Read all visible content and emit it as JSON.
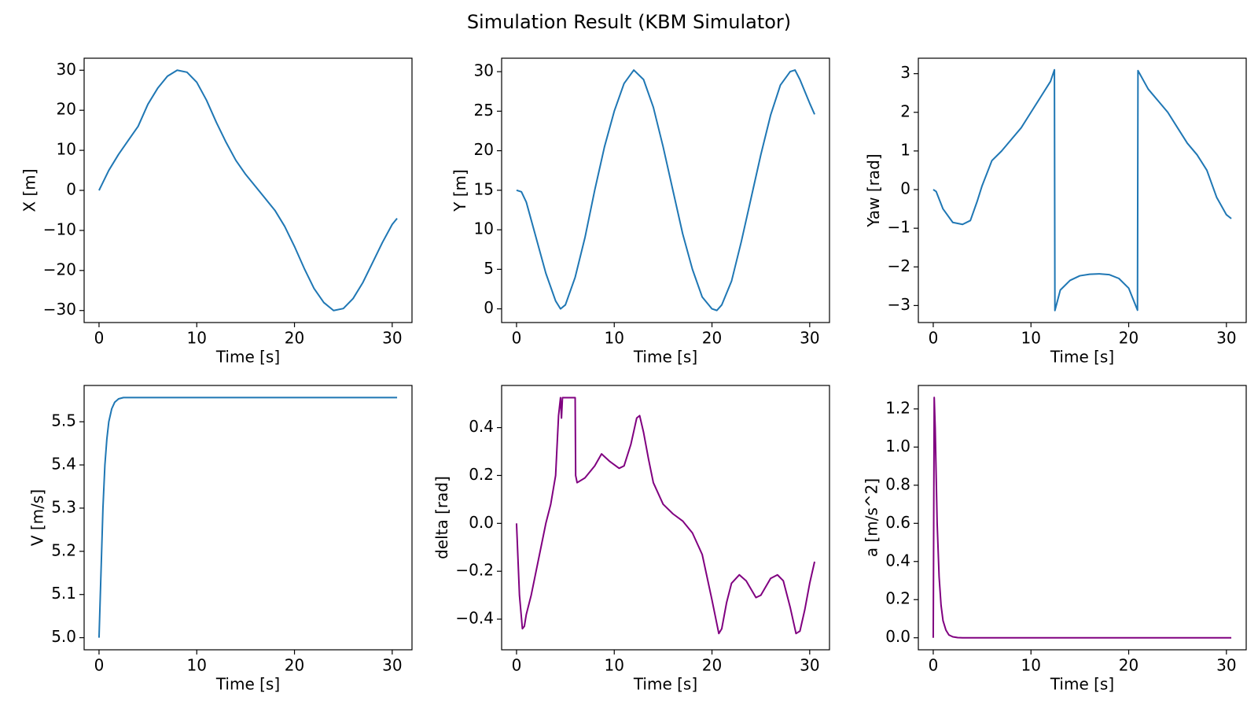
{
  "title": "Simulation Result (KBM Simulator)",
  "chart_data": [
    {
      "type": "line",
      "xlabel": "Time [s]",
      "ylabel": "X [m]",
      "color": "#1f77b4",
      "x": [
        0,
        1,
        2,
        3,
        4,
        5,
        6,
        7,
        8,
        9,
        10,
        11,
        12,
        13,
        14,
        15,
        16,
        17,
        18,
        19,
        20,
        21,
        22,
        23,
        24,
        25,
        26,
        27,
        28,
        29,
        30,
        30.5
      ],
      "values": [
        0,
        5,
        9,
        12.5,
        16,
        21.5,
        25.5,
        28.5,
        30,
        29.5,
        27,
        22.5,
        17,
        12,
        7.5,
        4,
        1,
        -2,
        -5,
        -9,
        -14,
        -19.5,
        -24.5,
        -28,
        -30,
        -29.5,
        -27,
        -23,
        -18,
        -13,
        -8.5,
        -7
      ],
      "xlim": [
        -1.525,
        32.025
      ],
      "ylim": [
        -33,
        33
      ],
      "xticks": [
        0,
        10,
        20,
        30
      ],
      "yticks": [
        {
          "value": -30,
          "label": "−30"
        },
        {
          "value": -20,
          "label": "−20"
        },
        {
          "value": -10,
          "label": "−10"
        },
        0,
        10,
        20,
        30
      ]
    },
    {
      "type": "line",
      "xlabel": "Time [s]",
      "ylabel": "Y [m]",
      "color": "#1f77b4",
      "x": [
        0,
        0.5,
        1,
        2,
        3,
        4,
        4.5,
        5,
        6,
        7,
        8,
        9,
        10,
        11,
        12,
        13,
        14,
        15,
        16,
        17,
        18,
        19,
        20,
        20.5,
        21,
        22,
        23,
        24,
        25,
        26,
        27,
        28,
        28.5,
        29,
        30,
        30.5
      ],
      "values": [
        15,
        14.8,
        13.5,
        9,
        4.5,
        1,
        0,
        0.5,
        4,
        9,
        15,
        20.5,
        25,
        28.5,
        30.2,
        29,
        25.5,
        20.5,
        15,
        9.5,
        5,
        1.5,
        0,
        -0.2,
        0.5,
        3.5,
        8.5,
        14,
        19.5,
        24.5,
        28.3,
        30,
        30.2,
        29,
        26,
        24.6
      ],
      "xlim": [
        -1.525,
        32.025
      ],
      "ylim": [
        -1.73,
        31.7
      ],
      "xticks": [
        0,
        10,
        20,
        30
      ],
      "yticks": [
        0,
        5,
        10,
        15,
        20,
        25,
        30
      ]
    },
    {
      "type": "line",
      "xlabel": "Time [s]",
      "ylabel": "Yaw [rad]",
      "color": "#1f77b4",
      "x": [
        0,
        0.3,
        1,
        2,
        3,
        3.8,
        4.5,
        5,
        6,
        7,
        8,
        9,
        10,
        11,
        12,
        12.4,
        12.45,
        13,
        14,
        15,
        16,
        17,
        18,
        19,
        20,
        20.9,
        20.95,
        22,
        23,
        24,
        25,
        26,
        27,
        28,
        29,
        30,
        30.5
      ],
      "values": [
        0,
        -0.05,
        -0.5,
        -0.85,
        -0.9,
        -0.8,
        -0.3,
        0.1,
        0.75,
        1.0,
        1.3,
        1.6,
        2.0,
        2.4,
        2.8,
        3.1,
        -3.13,
        -2.6,
        -2.35,
        -2.23,
        -2.19,
        -2.18,
        -2.2,
        -2.3,
        -2.55,
        -3.12,
        3.08,
        2.6,
        2.3,
        2.0,
        1.6,
        1.2,
        0.9,
        0.5,
        -0.2,
        -0.65,
        -0.75
      ],
      "xlim": [
        -1.525,
        32.025
      ],
      "ylim": [
        -3.44,
        3.4
      ],
      "xticks": [
        0,
        10,
        20,
        30
      ],
      "yticks": [
        {
          "value": -3,
          "label": "−3"
        },
        {
          "value": -2,
          "label": "−2"
        },
        {
          "value": -1,
          "label": "−1"
        },
        0,
        1,
        2,
        3
      ]
    },
    {
      "type": "line",
      "xlabel": "Time [s]",
      "ylabel": "V [m/s]",
      "color": "#1f77b4",
      "x": [
        0,
        0.2,
        0.4,
        0.6,
        0.8,
        1,
        1.3,
        1.6,
        2,
        2.5,
        3,
        30.5
      ],
      "values": [
        5.0,
        5.15,
        5.3,
        5.4,
        5.46,
        5.5,
        5.53,
        5.545,
        5.553,
        5.556,
        5.556,
        5.556
      ],
      "xlim": [
        -1.525,
        32.025
      ],
      "ylim": [
        4.972,
        5.584
      ],
      "xticks": [
        0,
        10,
        20,
        30
      ],
      "yticks": [
        {
          "value": 5,
          "label": "5.0"
        },
        5.1,
        5.2,
        5.3,
        5.4,
        5.5
      ]
    },
    {
      "type": "line",
      "xlabel": "Time [s]",
      "ylabel": "delta [rad]",
      "color": "#800080",
      "x": [
        0,
        0.3,
        0.6,
        0.8,
        1,
        1.5,
        2,
        2.5,
        3,
        3.5,
        4,
        4.3,
        4.5,
        4.6,
        4.7,
        6,
        6.05,
        6.2,
        7,
        8,
        8.7,
        9.5,
        10.5,
        11,
        11.7,
        12.3,
        12.6,
        13,
        13.5,
        14,
        15,
        16,
        17,
        18,
        19,
        20,
        20.7,
        21,
        21.5,
        22,
        22.8,
        23.5,
        24.5,
        25,
        26,
        26.7,
        27.3,
        28,
        28.6,
        29,
        29.5,
        30,
        30.5
      ],
      "values": [
        0,
        -0.3,
        -0.44,
        -0.43,
        -0.38,
        -0.3,
        -0.2,
        -0.1,
        0.0,
        0.08,
        0.2,
        0.45,
        0.525,
        0.44,
        0.525,
        0.525,
        0.2,
        0.17,
        0.19,
        0.24,
        0.29,
        0.26,
        0.23,
        0.24,
        0.33,
        0.44,
        0.45,
        0.38,
        0.27,
        0.17,
        0.08,
        0.04,
        0.01,
        -0.04,
        -0.13,
        -0.32,
        -0.46,
        -0.44,
        -0.33,
        -0.25,
        -0.215,
        -0.24,
        -0.31,
        -0.3,
        -0.23,
        -0.215,
        -0.24,
        -0.35,
        -0.46,
        -0.45,
        -0.36,
        -0.25,
        -0.16
      ],
      "xlim": [
        -1.525,
        32.025
      ],
      "ylim": [
        -0.528,
        0.576
      ],
      "xticks": [
        0,
        10,
        20,
        30
      ],
      "yticks": [
        {
          "value": -0.4,
          "label": "−0.4"
        },
        {
          "value": -0.2,
          "label": "−0.2"
        },
        {
          "value": 0,
          "label": "0.0"
        },
        0.2,
        0.4
      ]
    },
    {
      "type": "line",
      "xlabel": "Time [s]",
      "ylabel": "a [m/s^2]",
      "color": "#800080",
      "x": [
        0,
        0.1,
        0.2,
        0.4,
        0.6,
        0.8,
        1,
        1.3,
        1.6,
        2,
        2.5,
        3,
        30.5
      ],
      "values": [
        0,
        1.26,
        1.1,
        0.6,
        0.32,
        0.17,
        0.09,
        0.04,
        0.015,
        0.005,
        0.001,
        0,
        0
      ],
      "xlim": [
        -1.525,
        32.025
      ],
      "ylim": [
        -0.063,
        1.323
      ],
      "xticks": [
        0,
        10,
        20,
        30
      ],
      "yticks": [
        {
          "value": 0,
          "label": "0.0"
        },
        0.2,
        0.4,
        0.6,
        0.8,
        {
          "value": 1,
          "label": "1.0"
        },
        1.2
      ]
    }
  ]
}
